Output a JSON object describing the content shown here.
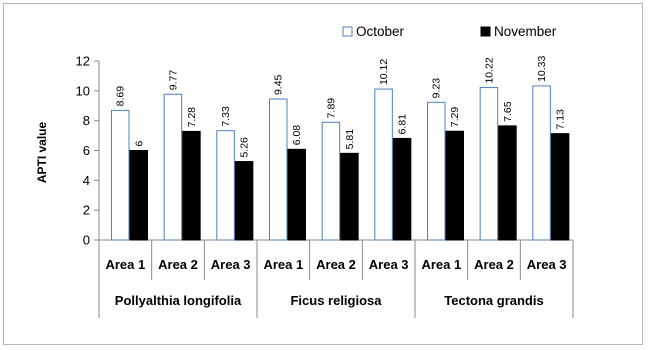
{
  "chart_data": {
    "type": "bar",
    "ylabel": "APTI value",
    "ylim": [
      0,
      12
    ],
    "yticks": [
      0,
      2,
      4,
      6,
      8,
      10,
      12
    ],
    "grid": false,
    "legend_position": "top-right",
    "groups": [
      {
        "name": "Pollyalthia  longifolia",
        "categories": [
          "Area 1",
          "Area 2",
          "Area 3"
        ]
      },
      {
        "name": "Ficus religiosa",
        "categories": [
          "Area 1",
          "Area 2",
          "Area 3"
        ]
      },
      {
        "name": "Tectona grandis",
        "categories": [
          "Area 1",
          "Area 2",
          "Area 3"
        ]
      }
    ],
    "series": [
      {
        "name": "October",
        "color": "#ffffff",
        "stroke": "#4f81bd",
        "values": [
          8.69,
          9.77,
          7.33,
          9.45,
          7.89,
          10.12,
          9.23,
          10.22,
          10.33
        ],
        "labels": [
          "8.69",
          "9.77",
          "7.33",
          "9.45",
          "7.89",
          "10.12",
          "9.23",
          "10.22",
          "10.33"
        ]
      },
      {
        "name": "November",
        "color": "#000000",
        "stroke": "#000000",
        "values": [
          6,
          7.28,
          5.26,
          6.08,
          5.81,
          6.81,
          7.29,
          7.65,
          7.13
        ],
        "labels": [
          "6",
          "7.28",
          "5.26",
          "6.08",
          "5.81",
          "6.81",
          "7.29",
          "7.65",
          "7.13"
        ]
      }
    ]
  }
}
